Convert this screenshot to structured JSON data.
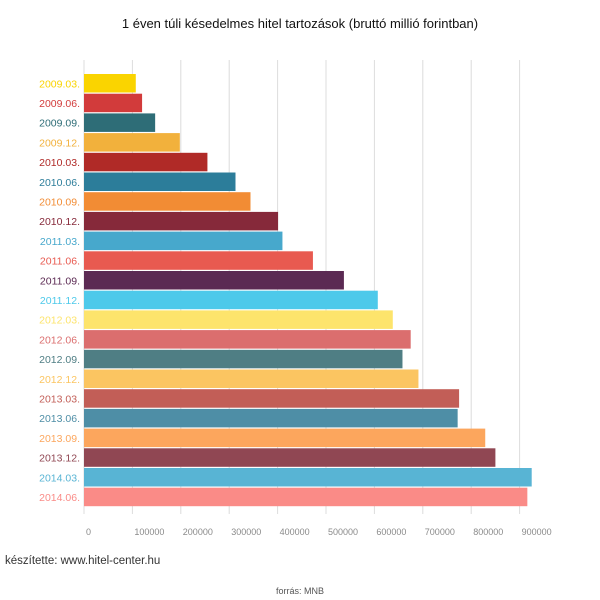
{
  "title": "1 éven túli késedelmes hitel tartozások (bruttó millió forintban)",
  "credit": "készítette: www.hitel-center.hu",
  "source": "forrás: MNB",
  "chart_data": {
    "type": "bar",
    "orientation": "horizontal",
    "title": "1 éven túli késedelmes hitel tartozások (bruttó millió forintban)",
    "xlabel": "",
    "ylabel": "",
    "xlim": [
      0,
      900000
    ],
    "xticks": [
      0,
      100000,
      200000,
      300000,
      400000,
      500000,
      600000,
      700000,
      800000,
      900000
    ],
    "grid": true,
    "categories": [
      "2009.03.",
      "2009.06.",
      "2009.09.",
      "2009.12.",
      "2010.03.",
      "2010.06.",
      "2010.09.",
      "2010.12.",
      "2011.03.",
      "2011.06.",
      "2011.09.",
      "2011.12.",
      "2012.03.",
      "2012.06.",
      "2012.09.",
      "2012.12.",
      "2013.03.",
      "2013.06.",
      "2013.09.",
      "2013.12.",
      "2014.03.",
      "2014.06."
    ],
    "values": [
      107000,
      120000,
      147000,
      198000,
      255000,
      313000,
      344000,
      401000,
      410000,
      473000,
      537000,
      607000,
      638000,
      675000,
      658000,
      691000,
      775000,
      772000,
      829000,
      850000,
      925000,
      916000
    ],
    "colors": [
      "#fad400",
      "#d23b3b",
      "#2e6d77",
      "#f2b13c",
      "#b02a27",
      "#2c7d9a",
      "#f28c34",
      "#86293a",
      "#47a8cc",
      "#e85a50",
      "#5b2a53",
      "#4dc9ea",
      "#fde46c",
      "#db6e6e",
      "#4f7e84",
      "#fbc561",
      "#c25e57",
      "#4e8ea6",
      "#fca65d",
      "#904753",
      "#58b4d4",
      "#fa8b87"
    ]
  }
}
